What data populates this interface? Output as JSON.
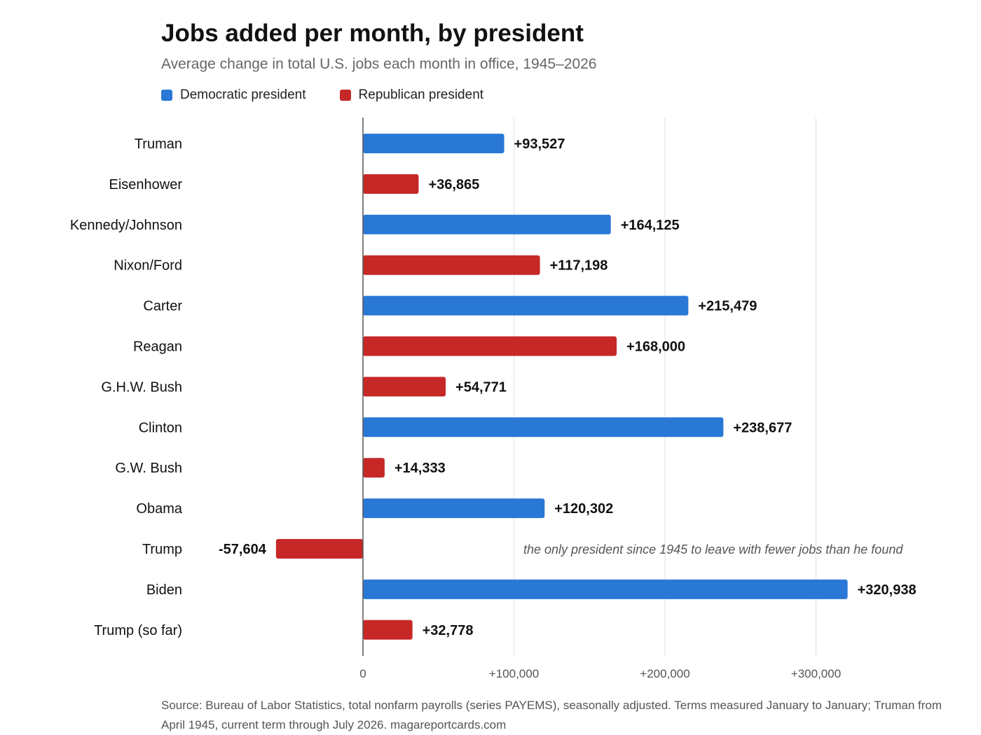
{
  "chart_data": {
    "type": "bar",
    "orientation": "horizontal",
    "title": "Jobs added per month, by president",
    "subtitle": "Average change in total U.S. jobs each month in office, 1945–2026",
    "legend": [
      {
        "label": "Democratic president",
        "party": "D",
        "color": "#2a78d6"
      },
      {
        "label": "Republican president",
        "party": "R",
        "color": "#c62828"
      }
    ],
    "legend_placement": "top-left",
    "categories": [
      "Truman",
      "Eisenhower",
      "Kennedy/Johnson",
      "Nixon/Ford",
      "Carter",
      "Reagan",
      "G.H.W. Bush",
      "Clinton",
      "G.W. Bush",
      "Obama",
      "Trump",
      "Biden",
      "Trump (so far)"
    ],
    "values": [
      93527,
      36865,
      164125,
      117198,
      215479,
      168000,
      54771,
      238677,
      14333,
      120302,
      -57604,
      320938,
      32778
    ],
    "value_labels": [
      "+93,527",
      "+36,865",
      "+164,125",
      "+117,198",
      "+215,479",
      "+168,000",
      "+54,771",
      "+238,677",
      "+14,333",
      "+120,302",
      "-57,604",
      "+320,938",
      "+32,778"
    ],
    "party": [
      "D",
      "R",
      "D",
      "R",
      "D",
      "R",
      "R",
      "D",
      "R",
      "D",
      "R",
      "D",
      "R"
    ],
    "xlim": [
      -120000,
      380000
    ],
    "x_ticks": [
      0,
      100000,
      200000,
      300000
    ],
    "x_tick_labels": [
      "0",
      "+100,000",
      "+200,000",
      "+300,000"
    ],
    "grid": "vertical",
    "annotations": [
      {
        "category": "Trump",
        "text": "the only president since 1945 to leave with fewer jobs than he found"
      }
    ],
    "xlabel": "",
    "ylabel": ""
  },
  "source": "Source: Bureau of Labor Statistics, total nonfarm payrolls (series PAYEMS), seasonally adjusted. Terms measured January to January; Truman from April 1945, current term through July 2026. magareportcards.com"
}
